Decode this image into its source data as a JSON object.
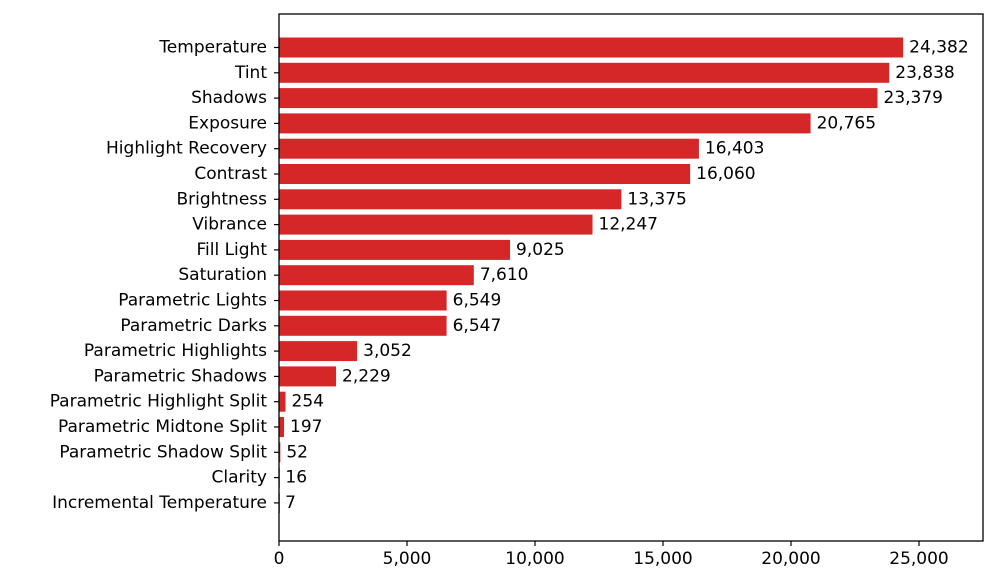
{
  "chart_data": {
    "type": "bar",
    "orientation": "horizontal",
    "categories": [
      "Temperature",
      "Tint",
      "Shadows",
      "Exposure",
      "Highlight Recovery",
      "Contrast",
      "Brightness",
      "Vibrance",
      "Fill Light",
      "Saturation",
      "Parametric Lights",
      "Parametric Darks",
      "Parametric Highlights",
      "Parametric Shadows",
      "Parametric Highlight Split",
      "Parametric Midtone Split",
      "Parametric Shadow Split",
      "Clarity",
      "Incremental Temperature"
    ],
    "values": [
      24382,
      23838,
      23379,
      20765,
      16403,
      16060,
      13375,
      12247,
      9025,
      7610,
      6549,
      6547,
      3052,
      2229,
      254,
      197,
      52,
      16,
      7
    ],
    "value_labels": [
      "24,382",
      "23,838",
      "23,379",
      "20,765",
      "16,403",
      "16,060",
      "13,375",
      "12,247",
      "9,025",
      "7,610",
      "6,549",
      "6,547",
      "3,052",
      "2,229",
      "254",
      "197",
      "52",
      "16",
      "7"
    ],
    "xticks": [
      0,
      5000,
      10000,
      15000,
      20000,
      25000
    ],
    "xtick_labels": [
      "0",
      "5,000",
      "10,000",
      "15,000",
      "20,000",
      "25,000"
    ],
    "xlim": [
      0,
      27500
    ],
    "title": "",
    "xlabel": "",
    "ylabel": "",
    "bar_color": "#d62728",
    "grid": false,
    "legend": false
  }
}
